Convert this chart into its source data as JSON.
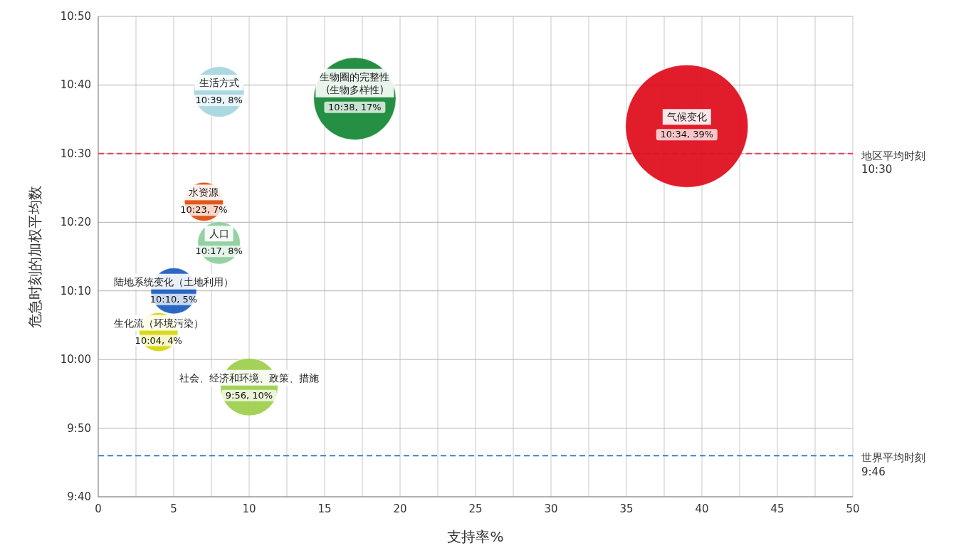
{
  "chart_data": {
    "type": "bubble",
    "xlabel": "支持率%",
    "ylabel": "危急时刻的加权平均数",
    "xlim": [
      0,
      50
    ],
    "xticks": [
      0,
      {
        "value": 2.5,
        "label": null
      },
      5,
      {
        "value": 7.5,
        "label": null
      },
      10,
      {
        "value": 12.5,
        "label": null
      },
      15,
      {
        "value": 17.5,
        "label": null
      },
      20,
      {
        "value": 22.5,
        "label": null
      },
      25,
      {
        "value": 27.5,
        "label": null
      },
      30,
      {
        "value": 32.5,
        "label": null
      },
      35,
      {
        "value": 37.5,
        "label": null
      },
      40,
      {
        "value": 42.5,
        "label": null
      },
      45,
      {
        "value": 47.5,
        "label": null
      },
      50
    ],
    "ylim": [
      9.6667,
      10.8333
    ],
    "yticks": [
      {
        "value": 9.6667,
        "label": "9:40"
      },
      {
        "value": 9.8333,
        "label": "9:50"
      },
      {
        "value": 10,
        "label": "10:00"
      },
      {
        "value": 10.1667,
        "label": "10:10"
      },
      {
        "value": 10.3333,
        "label": "10:20"
      },
      {
        "value": 10.5,
        "label": "10:30"
      },
      {
        "value": 10.6667,
        "label": "10:40"
      },
      {
        "value": 10.8333,
        "label": "10:50"
      }
    ],
    "grid": true,
    "series": [
      {
        "name": "生活方式",
        "color": "#a8d8e0",
        "x": [
          8
        ],
        "values": [
          10.65
        ],
        "sizes": [
          0.17
        ],
        "value_labels": [
          "10:39, 8%"
        ]
      },
      {
        "name": "生物圈的完整性\n(生物多样性)",
        "color": "#1a8a3a",
        "x": [
          17
        ],
        "values": [
          10.6333
        ],
        "sizes": [
          0.45
        ],
        "value_labels": [
          "10:38, 17%"
        ]
      },
      {
        "name": "气候变化",
        "color": "#e01020",
        "x": [
          39
        ],
        "values": [
          10.5667
        ],
        "sizes": [
          1
        ],
        "value_labels": [
          "10:34, 39%"
        ]
      },
      {
        "name": "水资源",
        "color": "#e05010",
        "x": [
          7
        ],
        "values": [
          10.3833
        ],
        "sizes": [
          0.1
        ],
        "value_labels": [
          "10:23, 7%"
        ]
      },
      {
        "name": "人口",
        "color": "#8fcf9f",
        "x": [
          8
        ],
        "values": [
          10.2833
        ],
        "sizes": [
          0.12
        ],
        "value_labels": [
          "10:17, 8%"
        ]
      },
      {
        "name": "陆地系统变化（土地利用）",
        "color": "#2060c0",
        "x": [
          5
        ],
        "values": [
          10.1667
        ],
        "sizes": [
          0.14
        ],
        "value_labels": [
          "10:10, 5%"
        ]
      },
      {
        "name": "生化流（环境污染）",
        "color": "#d8d810",
        "x": [
          4
        ],
        "values": [
          10.0667
        ],
        "sizes": [
          0.1
        ],
        "value_labels": [
          "10:04, 4%"
        ]
      },
      {
        "name": "社会、经济和环境、政策、措施",
        "color": "#a0d050",
        "x": [
          10
        ],
        "values": [
          9.9333
        ],
        "sizes": [
          0.22
        ],
        "value_labels": [
          "9:56, 10%"
        ]
      }
    ],
    "ref_lines": [
      {
        "axis": "y",
        "value": 10.5,
        "color": "#e0405a",
        "line_style": "dashed"
      },
      {
        "axis": "y",
        "value": 9.7667,
        "color": "#3a7fd0",
        "line_style": "dashed"
      }
    ],
    "annotations": [
      "地区平均时刻\n10:30",
      "世界平均时刻\n9:46"
    ]
  }
}
